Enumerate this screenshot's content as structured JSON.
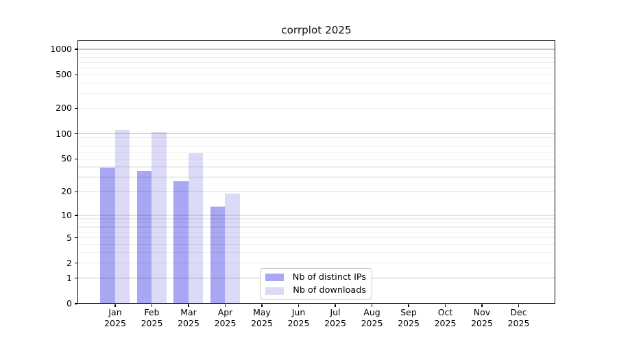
{
  "chart_data": {
    "type": "bar",
    "title": "corrplot 2025",
    "categories": [
      "Jan",
      "Feb",
      "Mar",
      "Apr",
      "May",
      "Jun",
      "Jul",
      "Aug",
      "Sep",
      "Oct",
      "Nov",
      "Dec"
    ],
    "x_tick_year": "2025",
    "series": [
      {
        "name": "Nb of distinct IPs",
        "color": "#a7a7f3",
        "values": [
          39,
          36,
          27,
          13,
          0,
          0,
          0,
          0,
          0,
          0,
          0,
          0
        ]
      },
      {
        "name": "Nb of downloads",
        "color": "#dbdbf8",
        "values": [
          110,
          104,
          58,
          19,
          0,
          0,
          0,
          0,
          0,
          0,
          0,
          0
        ]
      }
    ],
    "yscale": "log1p",
    "ylim": [
      0,
      1280
    ],
    "y_ticks": [
      0,
      1,
      2,
      5,
      10,
      20,
      50,
      100,
      200,
      500,
      1000
    ],
    "y_major_gridlines": [
      1,
      10,
      100,
      1000
    ],
    "y_minor_gridlines": [
      2,
      3,
      4,
      5,
      6,
      7,
      8,
      9,
      20,
      30,
      40,
      50,
      60,
      70,
      80,
      90,
      200,
      300,
      400,
      500,
      600,
      700,
      800,
      900
    ],
    "grid": true,
    "xlabel": "",
    "ylabel": "",
    "legend_position": "lower center"
  }
}
